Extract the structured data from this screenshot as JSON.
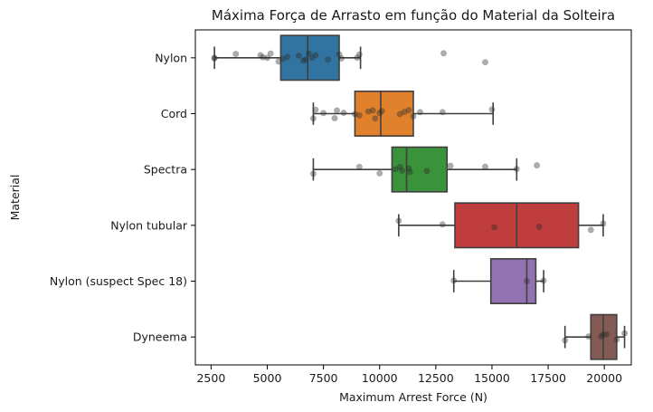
{
  "chart_data": {
    "type": "boxplot",
    "orientation": "horizontal",
    "title": "Máxima Força de Arrasto em função do Material da Solteira",
    "xlabel": "Maximum Arrest Force (N)",
    "ylabel": "Material",
    "xlim": [
      1800,
      21200
    ],
    "xticks": [
      2500,
      5000,
      7500,
      10000,
      12500,
      15000,
      17500,
      20000
    ],
    "grid": false,
    "categories": [
      "Nylon",
      "Cord",
      "Spectra",
      "Nylon tubular",
      "Nylon (suspect Spec 18)",
      "Dyneema"
    ],
    "colors": [
      "#3274a1",
      "#e1812c",
      "#3a923a",
      "#c03d3e",
      "#9372b2",
      "#845b53"
    ],
    "boxes": [
      {
        "whisker_low": 2650,
        "q1": 5600,
        "median": 6800,
        "q3": 8200,
        "whisker_high": 9150
      },
      {
        "whisker_low": 7050,
        "q1": 8900,
        "median": 10050,
        "q3": 11500,
        "whisker_high": 15050
      },
      {
        "whisker_low": 7050,
        "q1": 10550,
        "median": 11200,
        "q3": 13000,
        "whisker_high": 16100
      },
      {
        "whisker_low": 10850,
        "q1": 13350,
        "median": 16100,
        "q3": 18850,
        "whisker_high": 19950
      },
      {
        "whisker_low": 13300,
        "q1": 14950,
        "median": 16550,
        "q3": 16950,
        "whisker_high": 17300
      },
      {
        "whisker_low": 18250,
        "q1": 19400,
        "median": 19950,
        "q3": 20550,
        "whisker_high": 20900
      }
    ],
    "points": [
      {
        "category": "Nylon",
        "values": [
          2650,
          2650,
          3600,
          4700,
          4800,
          5000,
          5150,
          5500,
          5700,
          5900,
          6400,
          6600,
          6700,
          6850,
          7000,
          7150,
          7700,
          8200,
          8300,
          9000,
          9100,
          12850,
          14700
        ]
      },
      {
        "category": "Cord",
        "values": [
          7050,
          7150,
          7500,
          8000,
          8100,
          8400,
          8900,
          9100,
          9500,
          9700,
          9800,
          10000,
          10100,
          10900,
          11100,
          11300,
          11500,
          11800,
          12800,
          15000
        ]
      },
      {
        "category": "Spectra",
        "values": [
          7050,
          9100,
          10000,
          10700,
          10900,
          11000,
          11300,
          11350,
          12100,
          13150,
          14700,
          16100,
          17000
        ]
      },
      {
        "category": "Nylon tubular",
        "values": [
          10850,
          12800,
          15100,
          17100,
          19400,
          19950
        ]
      },
      {
        "category": "Nylon (suspect Spec 18)",
        "values": [
          13300,
          16550,
          17300
        ]
      },
      {
        "category": "Dyneema",
        "values": [
          18250,
          19300,
          19850,
          19950,
          20100,
          20550,
          20900
        ]
      }
    ]
  }
}
